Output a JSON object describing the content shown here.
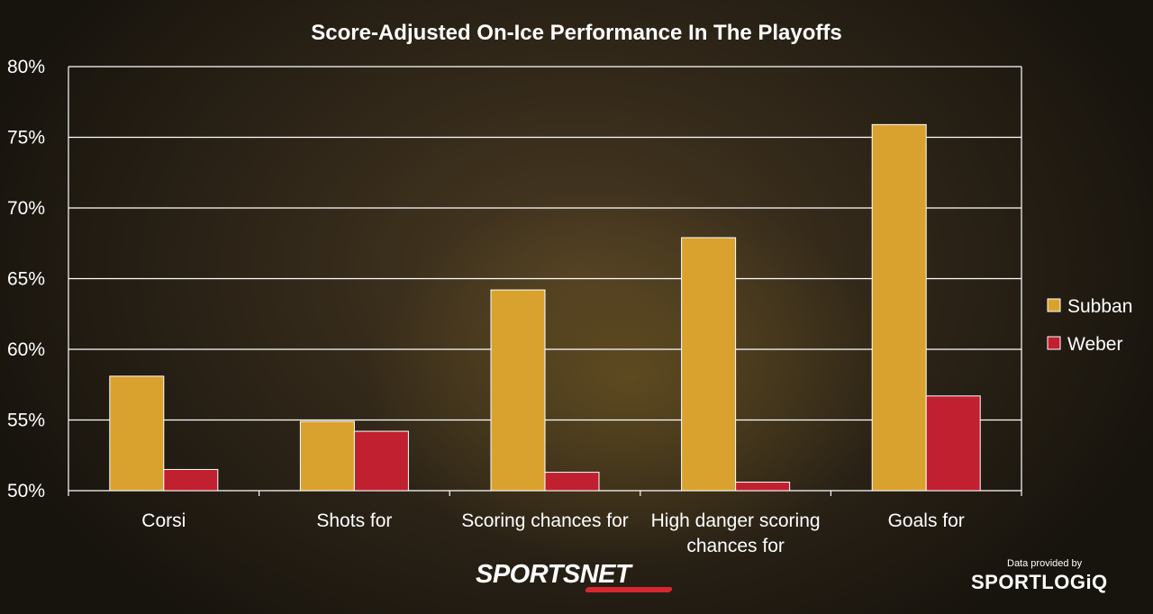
{
  "chart_data": {
    "type": "bar",
    "title": "Score-Adjusted On-Ice Performance In The Playoffs",
    "categories": [
      [
        "Corsi"
      ],
      [
        "Shots for"
      ],
      [
        "Scoring chances for"
      ],
      [
        "High danger scoring",
        "chances for"
      ],
      [
        "Goals for"
      ]
    ],
    "series": [
      {
        "name": "Subban",
        "color": "#d9a22e",
        "values": [
          58.1,
          54.9,
          64.2,
          67.9,
          75.9
        ]
      },
      {
        "name": "Weber",
        "color": "#c0202f",
        "values": [
          51.5,
          54.2,
          51.3,
          50.6,
          56.7
        ]
      }
    ],
    "ylim": [
      50,
      80
    ],
    "yticks": [
      "50%",
      "55%",
      "60%",
      "65%",
      "70%",
      "75%",
      "80%"
    ],
    "grid": true,
    "legend": "right"
  },
  "branding": {
    "sportsnet": "SPORTSNET",
    "credit": "Data provided by",
    "sportlogiq": "SPORTLOGiQ"
  }
}
